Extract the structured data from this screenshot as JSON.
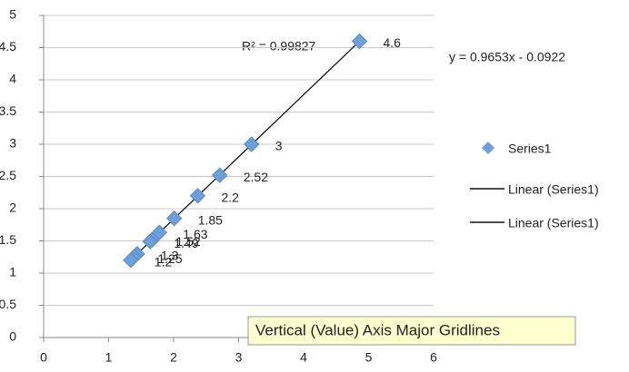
{
  "chart_data": {
    "type": "scatter",
    "series": [
      {
        "name": "Series1",
        "color": "#6f9fd8",
        "x": [
          4.86,
          3.2,
          2.71,
          2.37,
          2.01,
          1.78,
          1.67,
          1.64,
          1.44,
          1.39,
          1.34
        ],
        "values": [
          4.6,
          3,
          2.52,
          2.2,
          1.85,
          1.63,
          1.52,
          1.49,
          1.3,
          1.25,
          1.2
        ]
      }
    ],
    "trendlines": [
      {
        "name": "Linear (Series1)",
        "equation": "y = 0.9653x - 0.0922",
        "r2_label": "R² = 0.99827",
        "slope": 0.9653,
        "intercept": -0.0922,
        "color": "#111111"
      },
      {
        "name": "Linear (Series1)",
        "color": "#111111"
      }
    ],
    "xlim": [
      0,
      6
    ],
    "xticks": [
      0,
      1,
      2,
      3,
      4,
      5,
      6
    ],
    "ylim": [
      0,
      5
    ],
    "yticks": [
      0,
      0.5,
      1,
      1.5,
      2,
      2.5,
      3,
      3.5,
      4,
      4.5,
      5
    ],
    "grid": true,
    "legend": "right",
    "tooltip": "Vertical (Value) Axis Major Gridlines"
  }
}
